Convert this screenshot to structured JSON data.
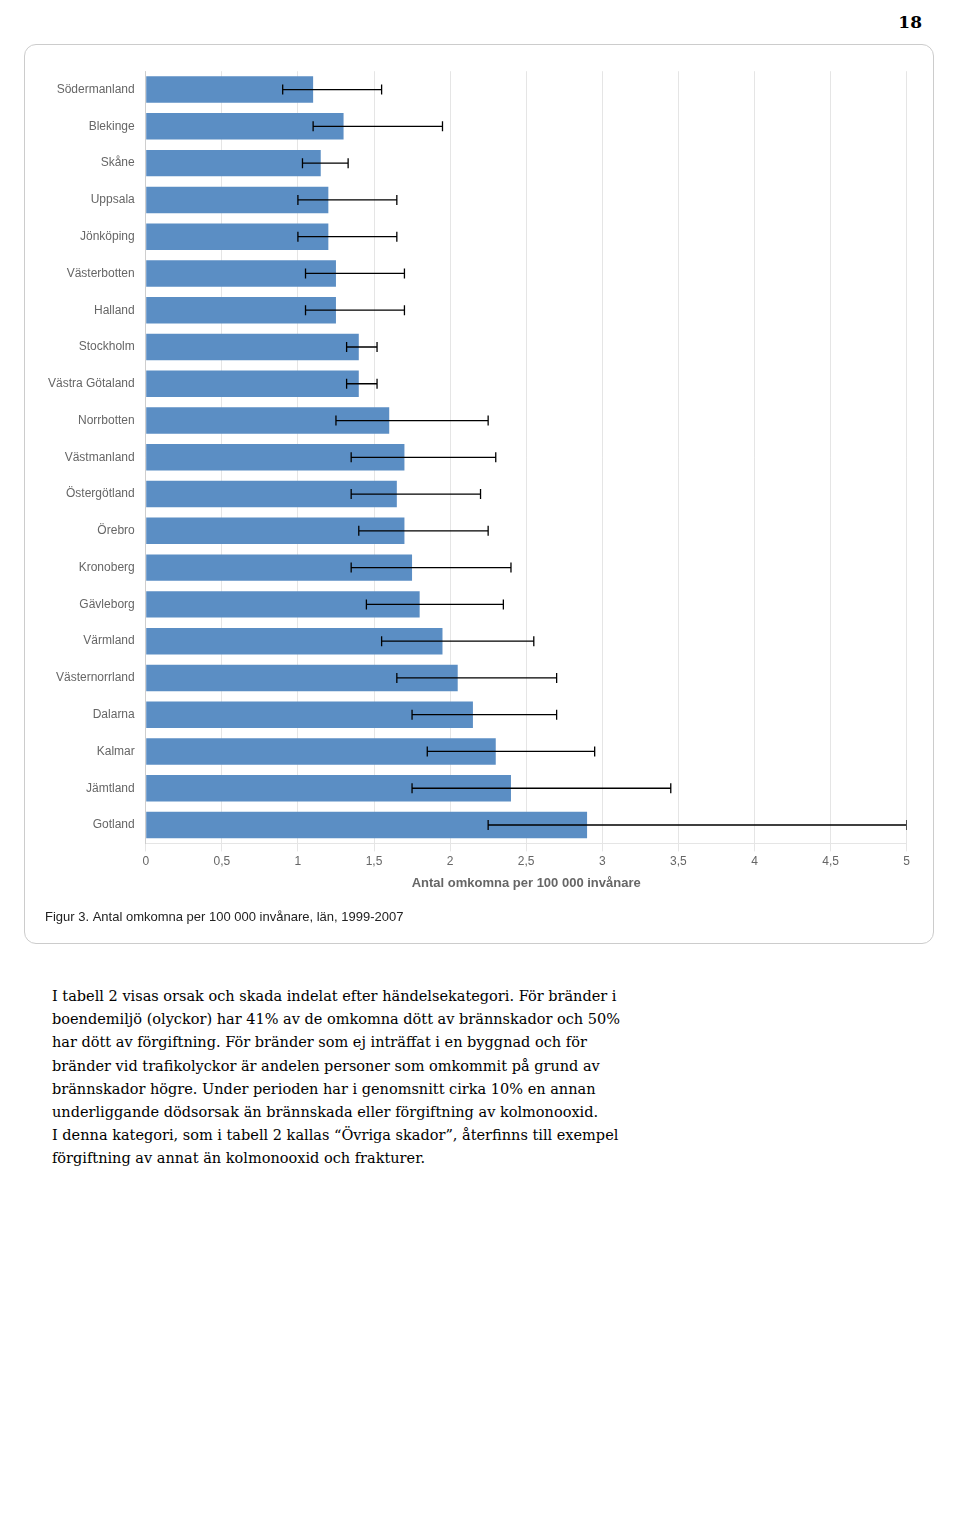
{
  "chart_data": {
    "type": "bar",
    "orientation": "horizontal",
    "title": "Figur 3. Antal omkomna per 100 000 invånare, län, 1999-2007",
    "xlabel": "Antal omkomna per 100 000 invånare",
    "categories": [
      "Södermanland",
      "Blekinge",
      "Skåne",
      "Uppsala",
      "Jönköping",
      "Västerbotten",
      "Halland",
      "Stockholm",
      "Västra Götaland",
      "Norrbotten",
      "Västmanland",
      "Östergötland",
      "Örebro",
      "Kronoberg",
      "Gävleborg",
      "Värmland",
      "Västernorrland",
      "Dalarna",
      "Kalmar",
      "Jämtland",
      "Gotland"
    ],
    "values": [
      1.1,
      1.3,
      1.15,
      1.2,
      1.2,
      1.25,
      1.25,
      1.4,
      1.4,
      1.6,
      1.7,
      1.65,
      1.7,
      1.75,
      1.8,
      1.95,
      2.05,
      2.15,
      2.3,
      2.4,
      2.9
    ],
    "errors_low": [
      0.2,
      0.2,
      0.12,
      0.2,
      0.2,
      0.2,
      0.2,
      0.08,
      0.08,
      0.35,
      0.35,
      0.3,
      0.3,
      0.4,
      0.35,
      0.4,
      0.4,
      0.4,
      0.45,
      0.65,
      0.65
    ],
    "errors_high": [
      0.45,
      0.65,
      0.18,
      0.45,
      0.45,
      0.45,
      0.45,
      0.12,
      0.12,
      0.65,
      0.6,
      0.55,
      0.55,
      0.65,
      0.55,
      0.6,
      0.65,
      0.55,
      0.65,
      1.05,
      2.1
    ],
    "color": "#5B8EC4",
    "xlim": [
      0,
      5
    ],
    "xticks": [
      0,
      {
        "value": 0.5,
        "label": "0,5"
      },
      1,
      {
        "value": 1.5,
        "label": "1,5"
      },
      2,
      {
        "value": 2.5,
        "label": "2,5"
      },
      3,
      {
        "value": 3.5,
        "label": "3,5"
      },
      4,
      {
        "value": 4.5,
        "label": "4,5"
      },
      5
    ],
    "grid": true,
    "annotations": [
      "18",
      "I tabell 2 visas orsak och skada indelat efter händelsekategori. För bränder i",
      "boendemiljö (olyckor) har 41% av de omkomna dött av brännskador och 50%",
      "har dött av förgiftning. För bränder som ej inträffat i en byggnad och för",
      "bränder vid trafikolyckor är andelen personer som omkommit på grund av",
      "brännskador högre. Under perioden har i genomsnitt cirka 10% en annan",
      "underliggande dödsorsak än brännskada eller förgiftning av kolmonooxid.",
      "I denna kategori, som i tabell 2 kallas “Övriga skador”, återfinns till exempel",
      "förgiftning av annat än kolmonooxid och frakturer."
    ]
  }
}
